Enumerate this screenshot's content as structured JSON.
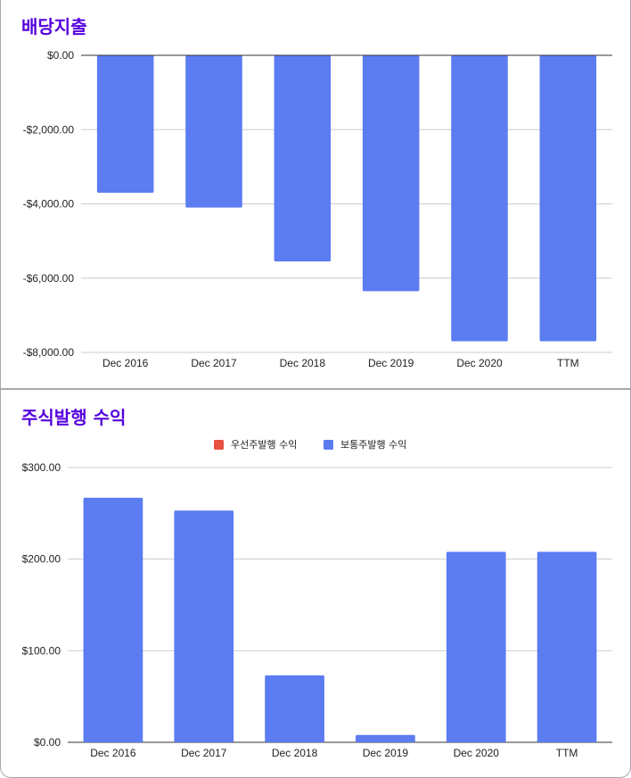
{
  "colors": {
    "bar": "#5c7cf2",
    "preferred": "#e6513f",
    "grid": "#cccccc",
    "axis": "#333333",
    "title": "#5500dd"
  },
  "chart_data": [
    {
      "type": "bar",
      "title": "배당지출",
      "categories": [
        "Dec 2016",
        "Dec 2017",
        "Dec 2018",
        "Dec 2019",
        "Dec 2020",
        "TTM"
      ],
      "values": [
        -3700,
        -4100,
        -5550,
        -6350,
        -7700,
        -7700
      ],
      "yticks": [
        0,
        -2000,
        -4000,
        -6000,
        -8000
      ],
      "ytick_labels": [
        "$0.00",
        "-$2,000.00",
        "-$4,000.00",
        "-$6,000.00",
        "-$8,000.00"
      ],
      "ylim": [
        -8000,
        0
      ],
      "grid": true
    },
    {
      "type": "bar",
      "title": "주식발행 수익",
      "categories": [
        "Dec 2016",
        "Dec 2017",
        "Dec 2018",
        "Dec 2019",
        "Dec 2020",
        "TTM"
      ],
      "series": [
        {
          "name": "우선주발행 수익",
          "values": [
            0,
            0,
            0,
            0,
            0,
            0
          ]
        },
        {
          "name": "보통주발행 수익",
          "values": [
            267,
            253,
            73,
            8,
            208,
            208
          ]
        }
      ],
      "yticks": [
        0,
        100,
        200,
        300
      ],
      "ytick_labels": [
        "$0.00",
        "$100.00",
        "$200.00",
        "$300.00"
      ],
      "ylim": [
        0,
        300
      ],
      "legend": "top-center",
      "grid": true
    }
  ]
}
